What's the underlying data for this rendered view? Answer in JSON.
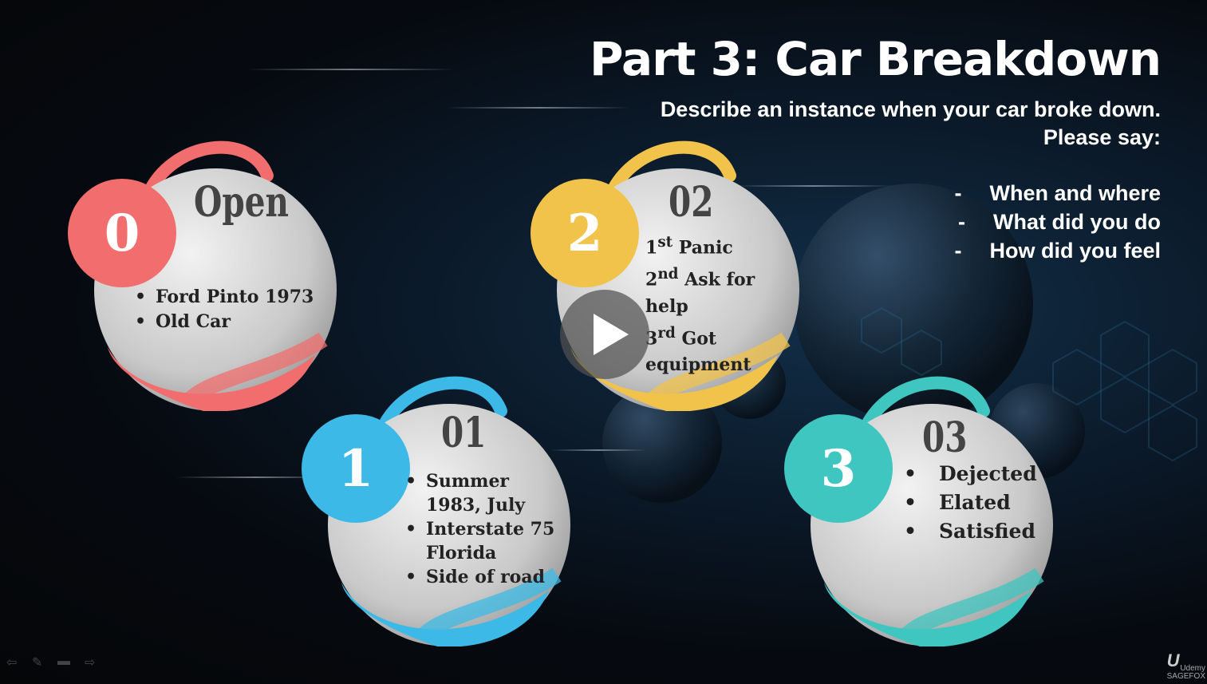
{
  "slide": {
    "title": "Part 3: Car Breakdown",
    "subtitle_lines": [
      "Describe an instance when your car broke down.",
      "Please say:"
    ],
    "prompts": [
      {
        "dash": "-",
        "text": "When and where"
      },
      {
        "dash": "-",
        "text": "What did you do"
      },
      {
        "dash": "-",
        "text": "How did you feel"
      }
    ],
    "cards": [
      {
        "number": "0",
        "heading": "Open",
        "color": "#f26d6d",
        "items": [
          "Ford Pinto 1973",
          "Old Car"
        ]
      },
      {
        "number": "1",
        "heading": "01",
        "color": "#3cb9e6",
        "items": [
          "Summer 1983, July",
          "Interstate 75 Florida",
          "Side of road"
        ]
      },
      {
        "number": "2",
        "heading": "02",
        "color": "#f1c34a",
        "steps": [
          {
            "num": "1",
            "sup": "st",
            "text": "Panic"
          },
          {
            "num": "2",
            "sup": "nd",
            "text": "Ask for help"
          },
          {
            "num": "3",
            "sup": "rd",
            "text": "Got equipment"
          }
        ]
      },
      {
        "number": "3",
        "heading": "03",
        "color": "#3fc6c0",
        "items": [
          "Dejected",
          "Elated",
          "Satisfied"
        ]
      }
    ]
  },
  "player": {
    "play_icon": "play-icon",
    "controls": [
      "arrow-left-icon",
      "pen-icon",
      "screen-icon",
      "arrow-right-icon"
    ]
  },
  "watermark": {
    "logo": "U",
    "line1": "Udemy",
    "line2": "SAGEFOX"
  }
}
